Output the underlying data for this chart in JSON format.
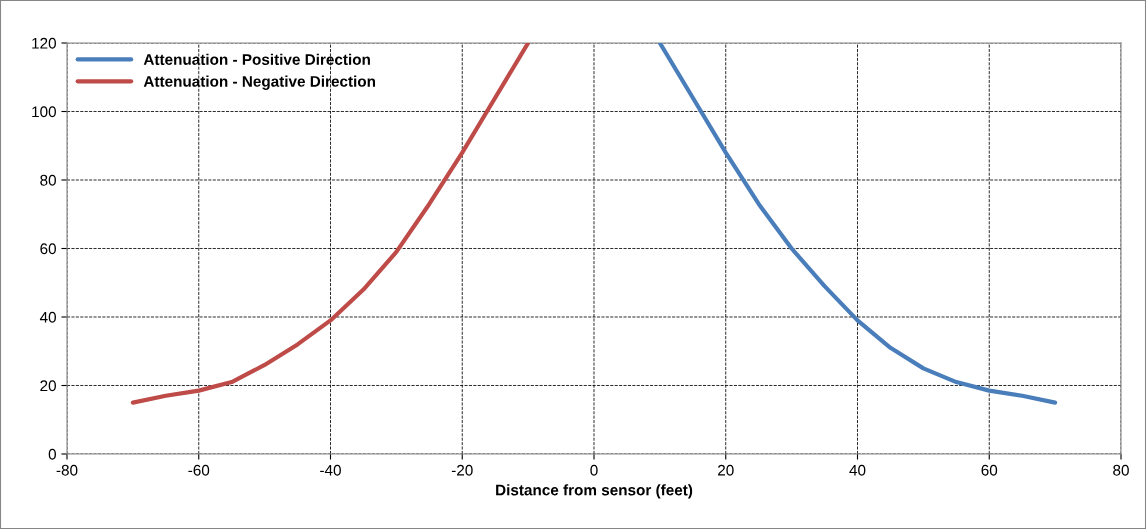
{
  "chart_data": {
    "type": "line",
    "xlabel": "Distance from sensor (feet)",
    "xlim": [
      -80,
      80
    ],
    "xticks": [
      -80,
      -60,
      -40,
      -20,
      0,
      20,
      40,
      60,
      80
    ],
    "ylim": [
      0,
      120
    ],
    "yticks": [
      0,
      20,
      40,
      60,
      80,
      100,
      120
    ],
    "grid": true,
    "legend": "top left",
    "marker": "none",
    "line_style": "solid",
    "series": [
      {
        "name": "Attenuation - Positive Direction",
        "color": "#4a7ebb",
        "x": [
          10,
          15,
          20,
          25,
          30,
          35,
          40,
          45,
          50,
          55,
          60,
          65,
          70
        ],
        "values": [
          120,
          104,
          88,
          73,
          60,
          49,
          39,
          31,
          25,
          21,
          18.5,
          17,
          15
        ]
      },
      {
        "name": "Attenuation - Negative Direction",
        "color": "#be4b48",
        "x": [
          -70,
          -65,
          -60,
          -55,
          -50,
          -45,
          -40,
          -35,
          -30,
          -25,
          -20,
          -15,
          -10
        ],
        "values": [
          15,
          17,
          18.5,
          21,
          26,
          32,
          39,
          48,
          59,
          73,
          88,
          104,
          120
        ]
      }
    ]
  }
}
